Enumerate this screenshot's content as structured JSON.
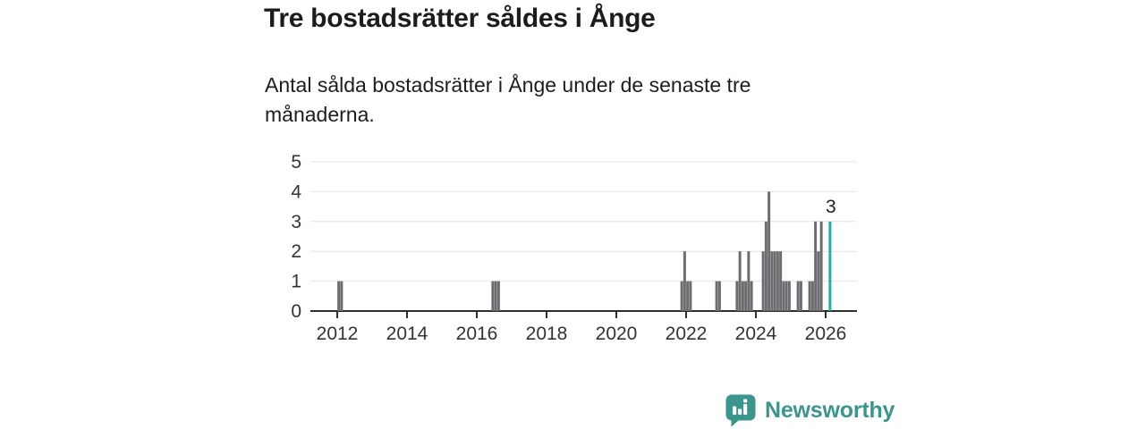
{
  "header": {
    "title": "Tre bostadsrätter såldes i Ånge",
    "subtitle": "Antal sålda bostadsrätter i Ånge under de senaste tre månaderna."
  },
  "branding": {
    "logo_text": "Newsworthy",
    "logo_icon": "speech-bubble-bar-chart-icon"
  },
  "colors": {
    "bar": "#6c6c71",
    "highlight": "#23b0a6",
    "grid": "#e4e4e4",
    "axis": "#2e2e2e",
    "tick_label": "#333333",
    "annotation": "#222222",
    "logo": "#3c958d",
    "background": "#ffffff"
  },
  "chart_data": {
    "type": "bar",
    "title": "Tre bostadsrätter såldes i Ånge",
    "xlabel": "",
    "ylabel": "",
    "x_unit": "month",
    "y_unit": "antal sålda bostadsrätter",
    "ylim": [
      0,
      5
    ],
    "yticks": [
      0,
      1,
      2,
      3,
      4,
      5
    ],
    "xticks": [
      2012,
      2014,
      2016,
      2018,
      2020,
      2022,
      2024,
      2026
    ],
    "x_range_years": [
      2011.2,
      2026.92
    ],
    "grid": "horizontal",
    "legend": "none",
    "highlight_point": "2026-02",
    "annotation": {
      "text": "3",
      "month": "2026-02",
      "value": 3
    },
    "series": [
      {
        "name": "Antal sålda bostadsrätter i Ånge",
        "points": [
          [
            "2012-01",
            1
          ],
          [
            "2012-02",
            1
          ],
          [
            "2016-06",
            1
          ],
          [
            "2016-07",
            1
          ],
          [
            "2016-08",
            1
          ],
          [
            "2021-11",
            1
          ],
          [
            "2021-12",
            2
          ],
          [
            "2022-01",
            1
          ],
          [
            "2022-02",
            1
          ],
          [
            "2022-11",
            1
          ],
          [
            "2022-12",
            1
          ],
          [
            "2023-06",
            1
          ],
          [
            "2023-07",
            2
          ],
          [
            "2023-08",
            1
          ],
          [
            "2023-09",
            1
          ],
          [
            "2023-10",
            2
          ],
          [
            "2023-11",
            1
          ],
          [
            "2024-03",
            2
          ],
          [
            "2024-04",
            3
          ],
          [
            "2024-05",
            4
          ],
          [
            "2024-06",
            2
          ],
          [
            "2024-07",
            2
          ],
          [
            "2024-08",
            2
          ],
          [
            "2024-09",
            2
          ],
          [
            "2024-10",
            1
          ],
          [
            "2024-11",
            1
          ],
          [
            "2024-12",
            1
          ],
          [
            "2025-03",
            1
          ],
          [
            "2025-04",
            1
          ],
          [
            "2025-07",
            1
          ],
          [
            "2025-08",
            1
          ],
          [
            "2025-09",
            3
          ],
          [
            "2025-10",
            2
          ],
          [
            "2025-11",
            3
          ],
          [
            "2026-02",
            3
          ]
        ]
      }
    ]
  }
}
